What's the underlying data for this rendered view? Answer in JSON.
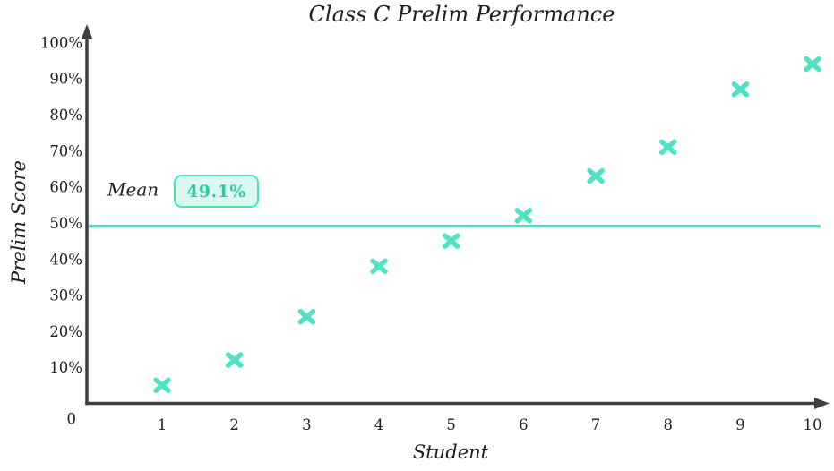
{
  "chart_data": {
    "type": "scatter",
    "title": "Class C Prelim Performance",
    "xlabel": "Student",
    "ylabel": "Prelim Score",
    "x": [
      1,
      2,
      3,
      4,
      5,
      6,
      7,
      8,
      9,
      10
    ],
    "y": [
      5,
      12,
      24,
      38,
      45,
      52,
      63,
      71,
      87,
      94
    ],
    "x_tick_labels": [
      "1",
      "2",
      "3",
      "4",
      "5",
      "6",
      "7",
      "8",
      "9",
      "10"
    ],
    "y_tick_values": [
      0,
      10,
      20,
      30,
      40,
      50,
      60,
      70,
      80,
      90,
      100
    ],
    "y_tick_labels": [
      "0",
      "10%",
      "20%",
      "30%",
      "40%",
      "50%",
      "60%",
      "70%",
      "80%",
      "90%",
      "100%"
    ],
    "xlim": [
      0,
      10.4
    ],
    "ylim": [
      0,
      104
    ],
    "grid": false,
    "legend": "none",
    "marker": "x",
    "mean_line": {
      "label": "Mean",
      "value": 49.1,
      "value_label": "49.1%"
    },
    "colors": {
      "accent": "#4de0c3",
      "marker": "#4de3c4",
      "mean_line": "#4de0c3",
      "badge_fill": "#dbf8f1",
      "badge_text": "#2fc7a6",
      "axis": "#3e3e3e",
      "text": "#202020"
    }
  }
}
